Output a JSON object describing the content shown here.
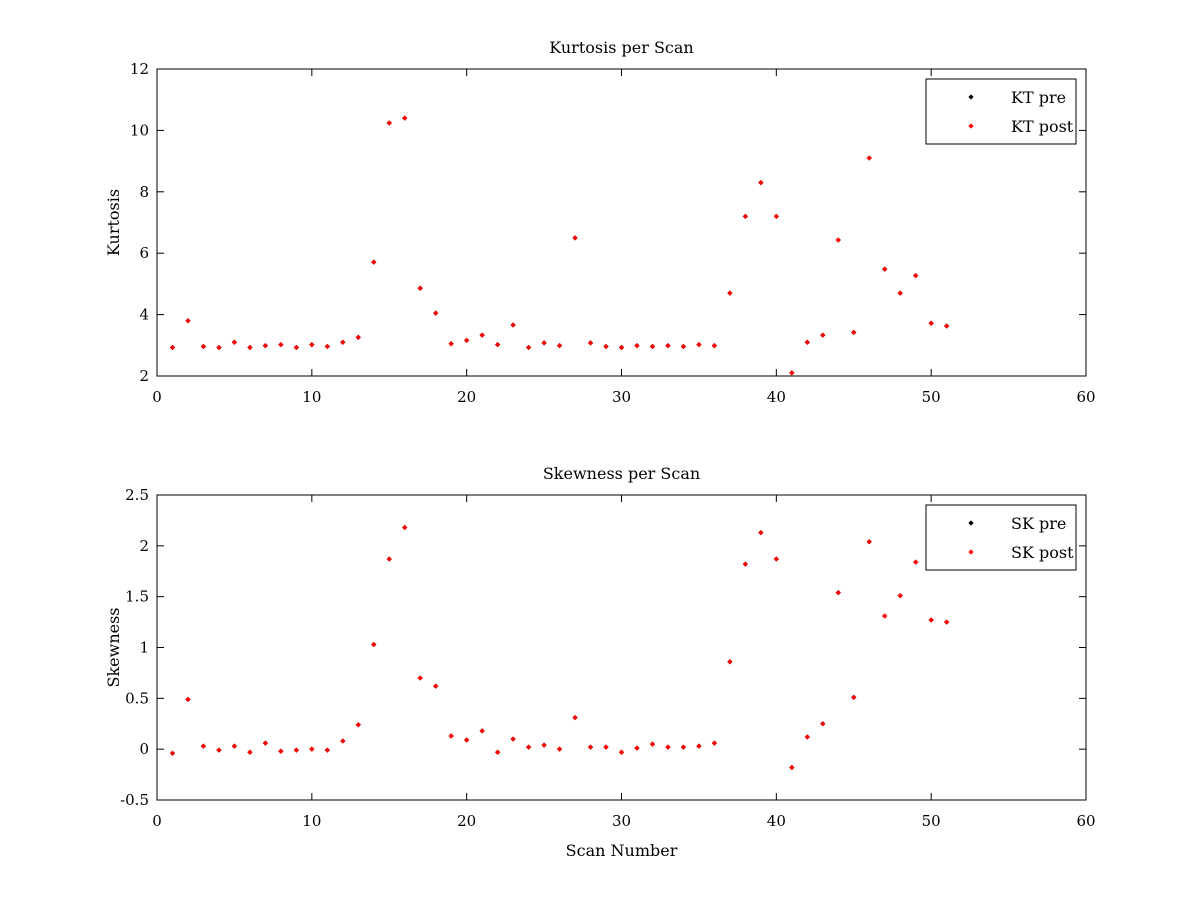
{
  "chart_data": [
    {
      "type": "scatter",
      "title": "Kurtosis per Scan",
      "xlabel": "",
      "ylabel": "Kurtosis",
      "xlim": [
        0,
        60
      ],
      "ylim": [
        2,
        12
      ],
      "xticks": [
        0,
        10,
        20,
        30,
        40,
        50,
        60
      ],
      "yticks": [
        2,
        4,
        6,
        8,
        10,
        12
      ],
      "grid": false,
      "legend_position": "top-right",
      "x": [
        1,
        2,
        3,
        4,
        5,
        6,
        7,
        8,
        9,
        10,
        11,
        12,
        13,
        14,
        15,
        16,
        17,
        18,
        19,
        20,
        21,
        22,
        23,
        24,
        25,
        26,
        27,
        28,
        29,
        30,
        31,
        32,
        33,
        34,
        35,
        36,
        37,
        38,
        39,
        40,
        41,
        42,
        43,
        44,
        45,
        46,
        47,
        48,
        49,
        50,
        51
      ],
      "series": [
        {
          "name": "KT pre",
          "color": "#000000",
          "values": [
            2.93,
            3.8,
            2.96,
            2.93,
            3.1,
            2.93,
            2.99,
            3.02,
            2.93,
            3.02,
            2.96,
            3.1,
            3.26,
            5.71,
            10.24,
            10.4,
            4.86,
            4.05,
            3.05,
            3.16,
            3.33,
            3.02,
            3.66,
            2.93,
            3.08,
            2.99,
            6.5,
            3.08,
            2.96,
            2.93,
            2.99,
            2.96,
            2.99,
            2.96,
            3.02,
            2.99,
            4.7,
            7.2,
            8.3,
            7.2,
            2.1,
            3.1,
            3.33,
            6.43,
            3.42,
            9.1,
            5.48,
            4.7,
            5.27,
            3.72,
            3.63
          ]
        },
        {
          "name": "KT post",
          "color": "#ff0000",
          "values": [
            2.93,
            3.8,
            2.96,
            2.93,
            3.1,
            2.93,
            2.99,
            3.02,
            2.93,
            3.02,
            2.96,
            3.1,
            3.26,
            5.71,
            10.24,
            10.4,
            4.86,
            4.05,
            3.05,
            3.16,
            3.33,
            3.02,
            3.66,
            2.93,
            3.08,
            2.99,
            6.5,
            3.08,
            2.96,
            2.93,
            2.99,
            2.96,
            2.99,
            2.96,
            3.02,
            2.99,
            4.7,
            7.2,
            8.3,
            7.2,
            2.1,
            3.1,
            3.33,
            6.43,
            3.42,
            9.1,
            5.48,
            4.7,
            5.27,
            3.72,
            3.63
          ]
        }
      ]
    },
    {
      "type": "scatter",
      "title": "Skewness per Scan",
      "xlabel": "Scan Number",
      "ylabel": "Skewness",
      "xlim": [
        0,
        60
      ],
      "ylim": [
        -0.5,
        2.5
      ],
      "xticks": [
        0,
        10,
        20,
        30,
        40,
        50,
        60
      ],
      "yticks": [
        -0.5,
        0,
        0.5,
        1,
        1.5,
        2,
        2.5
      ],
      "grid": false,
      "legend_position": "top-right",
      "x": [
        1,
        2,
        3,
        4,
        5,
        6,
        7,
        8,
        9,
        10,
        11,
        12,
        13,
        14,
        15,
        16,
        17,
        18,
        19,
        20,
        21,
        22,
        23,
        24,
        25,
        26,
        27,
        28,
        29,
        30,
        31,
        32,
        33,
        34,
        35,
        36,
        37,
        38,
        39,
        40,
        41,
        42,
        43,
        44,
        45,
        46,
        47,
        48,
        49,
        50,
        51
      ],
      "series": [
        {
          "name": "SK pre",
          "color": "#000000",
          "values": [
            -0.04,
            0.49,
            0.03,
            -0.01,
            0.03,
            -0.03,
            0.06,
            -0.02,
            -0.01,
            0.0,
            -0.01,
            0.08,
            0.24,
            1.03,
            1.87,
            2.18,
            0.7,
            0.62,
            0.13,
            0.09,
            0.18,
            -0.03,
            0.1,
            0.02,
            0.04,
            0.0,
            0.31,
            0.02,
            0.02,
            -0.03,
            0.01,
            0.05,
            0.02,
            0.02,
            0.03,
            0.06,
            0.86,
            1.82,
            2.13,
            1.87,
            -0.18,
            0.12,
            0.25,
            1.54,
            0.51,
            2.04,
            1.31,
            1.51,
            1.84,
            1.27,
            1.25
          ]
        },
        {
          "name": "SK post",
          "color": "#ff0000",
          "values": [
            -0.04,
            0.49,
            0.03,
            -0.01,
            0.03,
            -0.03,
            0.06,
            -0.02,
            -0.01,
            0.0,
            -0.01,
            0.08,
            0.24,
            1.03,
            1.87,
            2.18,
            0.7,
            0.62,
            0.13,
            0.09,
            0.18,
            -0.03,
            0.1,
            0.02,
            0.04,
            0.0,
            0.31,
            0.02,
            0.02,
            -0.03,
            0.01,
            0.05,
            0.02,
            0.02,
            0.03,
            0.06,
            0.86,
            1.82,
            2.13,
            1.87,
            -0.18,
            0.12,
            0.25,
            1.54,
            0.51,
            2.04,
            1.31,
            1.51,
            1.84,
            1.27,
            1.25
          ]
        }
      ]
    }
  ]
}
